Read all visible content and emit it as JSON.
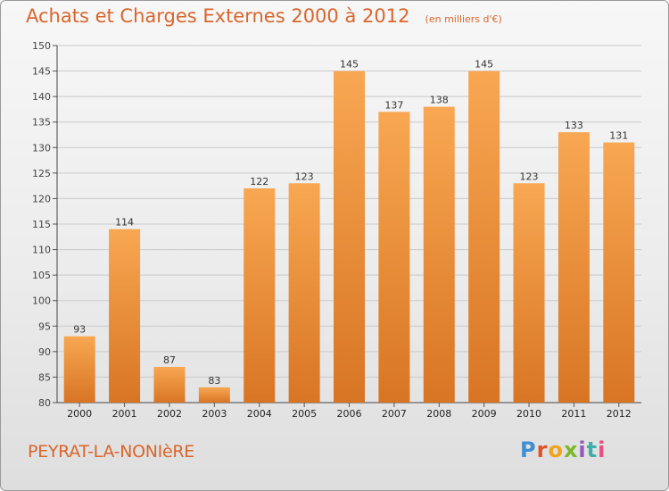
{
  "header": {
    "title": "Achats et Charges Externes 2000 à 2012",
    "subtitle": "(en milliers d'€)"
  },
  "footer": {
    "commune": "PEYRAT-LA-NONIèRE",
    "logo_text": "Proxiti"
  },
  "colors": {
    "title": "#d9652b",
    "bar_light": "#f6a24e",
    "bar_dark": "#d97826",
    "grid": "#c8c8c8"
  },
  "chart_data": {
    "type": "bar",
    "title": "Achats et Charges Externes 2000 à 2012",
    "subtitle": "(en milliers d'€)",
    "categories": [
      "2000",
      "2001",
      "2002",
      "2003",
      "2004",
      "2005",
      "2006",
      "2007",
      "2008",
      "2009",
      "2010",
      "2011",
      "2012"
    ],
    "values": [
      93,
      114,
      87,
      83,
      122,
      123,
      145,
      137,
      138,
      145,
      123,
      133,
      131
    ],
    "ylim": [
      80,
      150
    ],
    "yticks": [
      80,
      85,
      90,
      95,
      100,
      105,
      110,
      115,
      120,
      125,
      130,
      135,
      140,
      145,
      150
    ],
    "grid": true,
    "xlabel": "",
    "ylabel": ""
  }
}
